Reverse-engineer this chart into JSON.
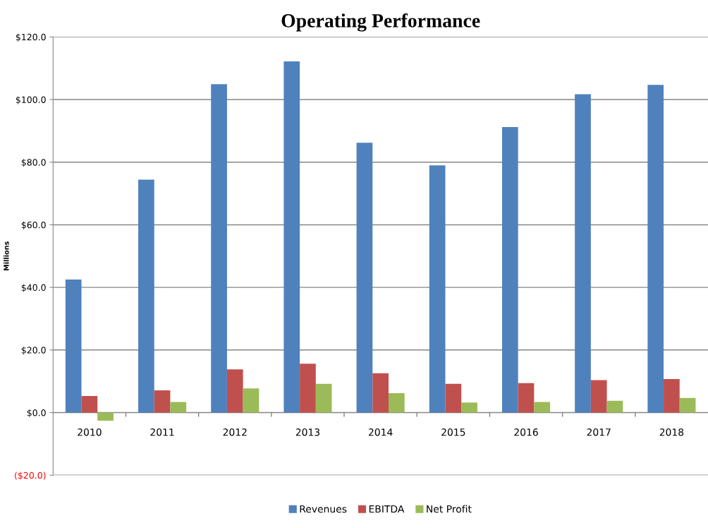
{
  "chart_data": {
    "type": "bar",
    "title": "Operating Performance",
    "ylabel": "Millions",
    "categories": [
      "2010",
      "2011",
      "2012",
      "2013",
      "2014",
      "2015",
      "2016",
      "2017",
      "2018"
    ],
    "series": [
      {
        "name": "Revenues",
        "color": "#4f81bd",
        "values": [
          42.5,
          74.4,
          104.9,
          112.2,
          86.2,
          79.0,
          91.2,
          101.7,
          104.7
        ]
      },
      {
        "name": "EBITDA",
        "color": "#c0504d",
        "values": [
          5.3,
          7.1,
          13.8,
          15.6,
          12.6,
          9.2,
          9.4,
          10.4,
          10.7
        ]
      },
      {
        "name": "Net Profit",
        "color": "#9bbb59",
        "values": [
          -2.6,
          3.4,
          7.7,
          9.2,
          6.2,
          3.2,
          3.4,
          3.8,
          4.7
        ]
      }
    ],
    "ylim": [
      -20,
      120
    ],
    "yticks": [
      {
        "value": -20,
        "label": "($20.0)"
      },
      {
        "value": 0,
        "label": "$0.0"
      },
      {
        "value": 20,
        "label": "$20.0"
      },
      {
        "value": 40,
        "label": "$40.0"
      },
      {
        "value": 60,
        "label": "$60.0"
      },
      {
        "value": 80,
        "label": "$80.0"
      },
      {
        "value": 100,
        "label": "$100.0"
      },
      {
        "value": 120,
        "label": "$120.0"
      }
    ],
    "grid": "y",
    "legend": "bottom"
  }
}
